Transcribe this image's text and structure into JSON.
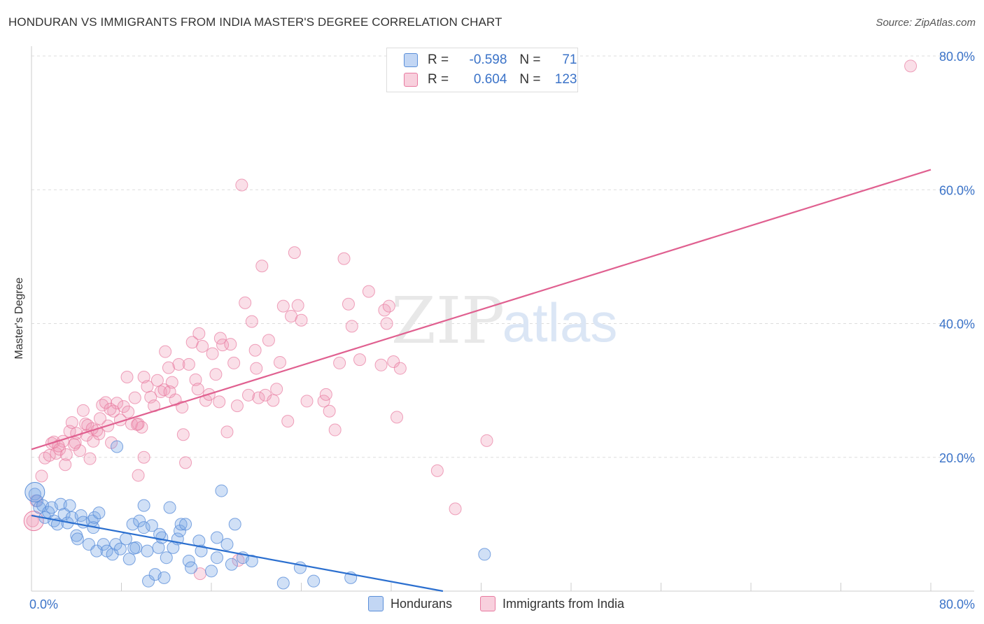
{
  "title": "HONDURAN VS IMMIGRANTS FROM INDIA MASTER'S DEGREE CORRELATION CHART",
  "source": "Source: ZipAtlas.com",
  "watermark": {
    "zip": "ZIP",
    "atlas": "atlas"
  },
  "colors": {
    "blue": "#5b8fd9",
    "blue_fill": "rgba(120,165,230,0.35)",
    "blue_line": "#2b6fcf",
    "pink": "#e87aa0",
    "pink_fill": "rgba(240,150,180,0.30)",
    "pink_line": "#e06090",
    "axis_text": "#3b73c8",
    "grid": "#dddddd"
  },
  "legend": {
    "rows": [
      {
        "r_label": "R =",
        "r_value": "-0.598",
        "n_label": "N =",
        "n_value": "71",
        "series": "Hondurans"
      },
      {
        "r_label": "R =",
        "r_value": "0.604",
        "n_label": "N =",
        "n_value": "123",
        "series": "Immigrants from India"
      }
    ]
  },
  "bottom_legend": [
    "Hondurans",
    "Immigrants from India"
  ],
  "chart_data": {
    "type": "scatter",
    "title": "HONDURAN VS IMMIGRANTS FROM INDIA MASTER'S DEGREE CORRELATION CHART",
    "xlabel": "",
    "ylabel": "Master's Degree",
    "xlim": [
      0,
      80
    ],
    "ylim": [
      0,
      80
    ],
    "x_tick_labels": [
      "0.0%",
      "80.0%"
    ],
    "y_ticks": [
      20,
      40,
      60,
      80
    ],
    "y_tick_labels": [
      "20.0%",
      "40.0%",
      "60.0%",
      "80.0%"
    ],
    "grid": true,
    "legend_position": "top-center",
    "series": [
      {
        "name": "Hondurans",
        "trend": {
          "x": [
            0,
            36.6
          ],
          "y": [
            11.3,
            0
          ]
        },
        "points": [
          [
            0.3,
            14.5
          ],
          [
            0.5,
            13.5
          ],
          [
            0.7,
            12.5
          ],
          [
            1.0,
            12.8
          ],
          [
            1.2,
            11.0
          ],
          [
            1.5,
            11.8
          ],
          [
            1.8,
            12.5
          ],
          [
            2.0,
            10.5
          ],
          [
            2.3,
            10.0
          ],
          [
            2.6,
            13.0
          ],
          [
            2.9,
            11.5
          ],
          [
            3.2,
            10.2
          ],
          [
            3.4,
            12.8
          ],
          [
            3.6,
            11.0
          ],
          [
            4.0,
            8.3
          ],
          [
            4.1,
            7.8
          ],
          [
            4.4,
            11.3
          ],
          [
            4.6,
            10.3
          ],
          [
            5.1,
            7.0
          ],
          [
            5.4,
            10.5
          ],
          [
            5.5,
            9.5
          ],
          [
            5.6,
            11.0
          ],
          [
            5.8,
            6.0
          ],
          [
            6.0,
            11.7
          ],
          [
            6.4,
            7.0
          ],
          [
            6.7,
            6.0
          ],
          [
            7.2,
            5.5
          ],
          [
            7.5,
            7.0
          ],
          [
            7.6,
            21.6
          ],
          [
            7.9,
            6.3
          ],
          [
            8.4,
            7.8
          ],
          [
            8.7,
            4.8
          ],
          [
            9.0,
            10.0
          ],
          [
            9.3,
            6.5
          ],
          [
            9.6,
            10.5
          ],
          [
            10.0,
            12.8
          ],
          [
            10.0,
            9.5
          ],
          [
            10.3,
            6.0
          ],
          [
            10.4,
            1.5
          ],
          [
            10.7,
            9.8
          ],
          [
            11.0,
            2.5
          ],
          [
            11.3,
            6.5
          ],
          [
            11.6,
            8.0
          ],
          [
            11.8,
            2.0
          ],
          [
            12.0,
            5.0
          ],
          [
            12.3,
            12.5
          ],
          [
            12.6,
            6.5
          ],
          [
            13.0,
            7.8
          ],
          [
            13.2,
            9.0
          ],
          [
            13.3,
            10.0
          ],
          [
            13.7,
            10.0
          ],
          [
            14.0,
            4.5
          ],
          [
            14.2,
            3.5
          ],
          [
            14.9,
            7.5
          ],
          [
            15.1,
            6.0
          ],
          [
            16.0,
            3.0
          ],
          [
            16.5,
            5.0
          ],
          [
            16.5,
            8.0
          ],
          [
            16.9,
            15.0
          ],
          [
            17.4,
            7.0
          ],
          [
            17.8,
            4.0
          ],
          [
            18.1,
            10.0
          ],
          [
            18.8,
            5.0
          ],
          [
            19.6,
            4.5
          ],
          [
            22.4,
            1.2
          ],
          [
            23.9,
            3.5
          ],
          [
            25.1,
            1.5
          ],
          [
            28.4,
            2.0
          ],
          [
            40.3,
            5.5
          ],
          [
            11.4,
            8.5
          ],
          [
            9.1,
            6.4
          ]
        ]
      },
      {
        "name": "Immigrants from India",
        "trend": {
          "x": [
            0,
            80
          ],
          "y": [
            21.2,
            63.0
          ]
        },
        "points": [
          [
            0.1,
            10.5
          ],
          [
            0.4,
            13.5
          ],
          [
            0.9,
            17.2
          ],
          [
            1.2,
            19.9
          ],
          [
            1.6,
            20.3
          ],
          [
            1.8,
            22.1
          ],
          [
            2.0,
            22.3
          ],
          [
            2.2,
            20.6
          ],
          [
            2.5,
            21.2
          ],
          [
            2.8,
            22.4
          ],
          [
            3.1,
            20.4
          ],
          [
            3.4,
            23.9
          ],
          [
            3.6,
            25.2
          ],
          [
            3.9,
            22.2
          ],
          [
            4.0,
            23.6
          ],
          [
            4.3,
            21.0
          ],
          [
            4.6,
            27.0
          ],
          [
            4.8,
            25.0
          ],
          [
            5.0,
            24.8
          ],
          [
            5.2,
            19.8
          ],
          [
            5.5,
            22.4
          ],
          [
            5.8,
            24.0
          ],
          [
            6.0,
            23.5
          ],
          [
            6.3,
            27.8
          ],
          [
            6.6,
            28.2
          ],
          [
            6.8,
            24.7
          ],
          [
            7.1,
            22.2
          ],
          [
            7.3,
            26.9
          ],
          [
            7.6,
            28.1
          ],
          [
            7.9,
            25.6
          ],
          [
            8.2,
            27.6
          ],
          [
            8.6,
            26.8
          ],
          [
            8.9,
            25.0
          ],
          [
            9.2,
            28.9
          ],
          [
            9.5,
            25.0
          ],
          [
            9.8,
            24.5
          ],
          [
            10.0,
            32.0
          ],
          [
            10.3,
            30.6
          ],
          [
            10.6,
            29.0
          ],
          [
            10.9,
            27.7
          ],
          [
            11.2,
            31.5
          ],
          [
            11.5,
            29.8
          ],
          [
            11.8,
            30.1
          ],
          [
            12.2,
            33.4
          ],
          [
            12.5,
            31.2
          ],
          [
            12.8,
            28.6
          ],
          [
            13.1,
            33.9
          ],
          [
            13.4,
            27.5
          ],
          [
            13.7,
            19.2
          ],
          [
            14.0,
            33.9
          ],
          [
            14.3,
            37.2
          ],
          [
            14.6,
            31.6
          ],
          [
            14.9,
            38.5
          ],
          [
            15.2,
            36.6
          ],
          [
            15.5,
            28.5
          ],
          [
            15.8,
            29.4
          ],
          [
            16.1,
            35.5
          ],
          [
            16.4,
            32.4
          ],
          [
            16.7,
            28.3
          ],
          [
            17.0,
            36.8
          ],
          [
            17.4,
            23.8
          ],
          [
            17.7,
            36.9
          ],
          [
            18.0,
            34.1
          ],
          [
            18.3,
            27.7
          ],
          [
            18.7,
            60.7
          ],
          [
            19.0,
            43.1
          ],
          [
            19.3,
            29.3
          ],
          [
            19.6,
            40.3
          ],
          [
            19.9,
            36.0
          ],
          [
            20.2,
            28.9
          ],
          [
            20.5,
            48.6
          ],
          [
            20.8,
            29.3
          ],
          [
            21.1,
            37.5
          ],
          [
            21.5,
            28.5
          ],
          [
            21.8,
            30.2
          ],
          [
            22.1,
            34.2
          ],
          [
            22.4,
            42.6
          ],
          [
            22.8,
            25.4
          ],
          [
            23.1,
            41.1
          ],
          [
            23.4,
            50.6
          ],
          [
            23.7,
            42.7
          ],
          [
            24.0,
            40.5
          ],
          [
            26.0,
            28.4
          ],
          [
            26.5,
            26.9
          ],
          [
            27.4,
            34.1
          ],
          [
            27.8,
            49.7
          ],
          [
            28.2,
            42.9
          ],
          [
            28.5,
            39.6
          ],
          [
            29.2,
            34.6
          ],
          [
            30.0,
            44.8
          ],
          [
            31.1,
            33.8
          ],
          [
            31.4,
            42.0
          ],
          [
            31.6,
            40.0
          ],
          [
            31.8,
            42.6
          ],
          [
            32.2,
            34.3
          ],
          [
            32.5,
            26.0
          ],
          [
            32.8,
            33.3
          ],
          [
            36.1,
            18.0
          ],
          [
            37.7,
            12.3
          ],
          [
            40.5,
            22.5
          ],
          [
            11.9,
            35.8
          ],
          [
            13.5,
            23.4
          ],
          [
            10.0,
            20.0
          ],
          [
            9.5,
            17.3
          ],
          [
            12.3,
            29.8
          ],
          [
            6.1,
            25.8
          ],
          [
            5.4,
            24.3
          ],
          [
            8.5,
            32.0
          ],
          [
            14.8,
            30.2
          ],
          [
            3.0,
            18.9
          ],
          [
            18.4,
            4.6
          ],
          [
            15.0,
            2.6
          ],
          [
            16.8,
            37.8
          ],
          [
            3.8,
            21.9
          ],
          [
            4.9,
            23.3
          ],
          [
            2.4,
            21.7
          ],
          [
            7.0,
            27.2
          ],
          [
            9.4,
            24.9
          ],
          [
            20.0,
            33.3
          ],
          [
            24.5,
            28.4
          ],
          [
            26.2,
            29.4
          ],
          [
            27.0,
            24.1
          ],
          [
            78.2,
            78.5
          ]
        ]
      }
    ]
  }
}
